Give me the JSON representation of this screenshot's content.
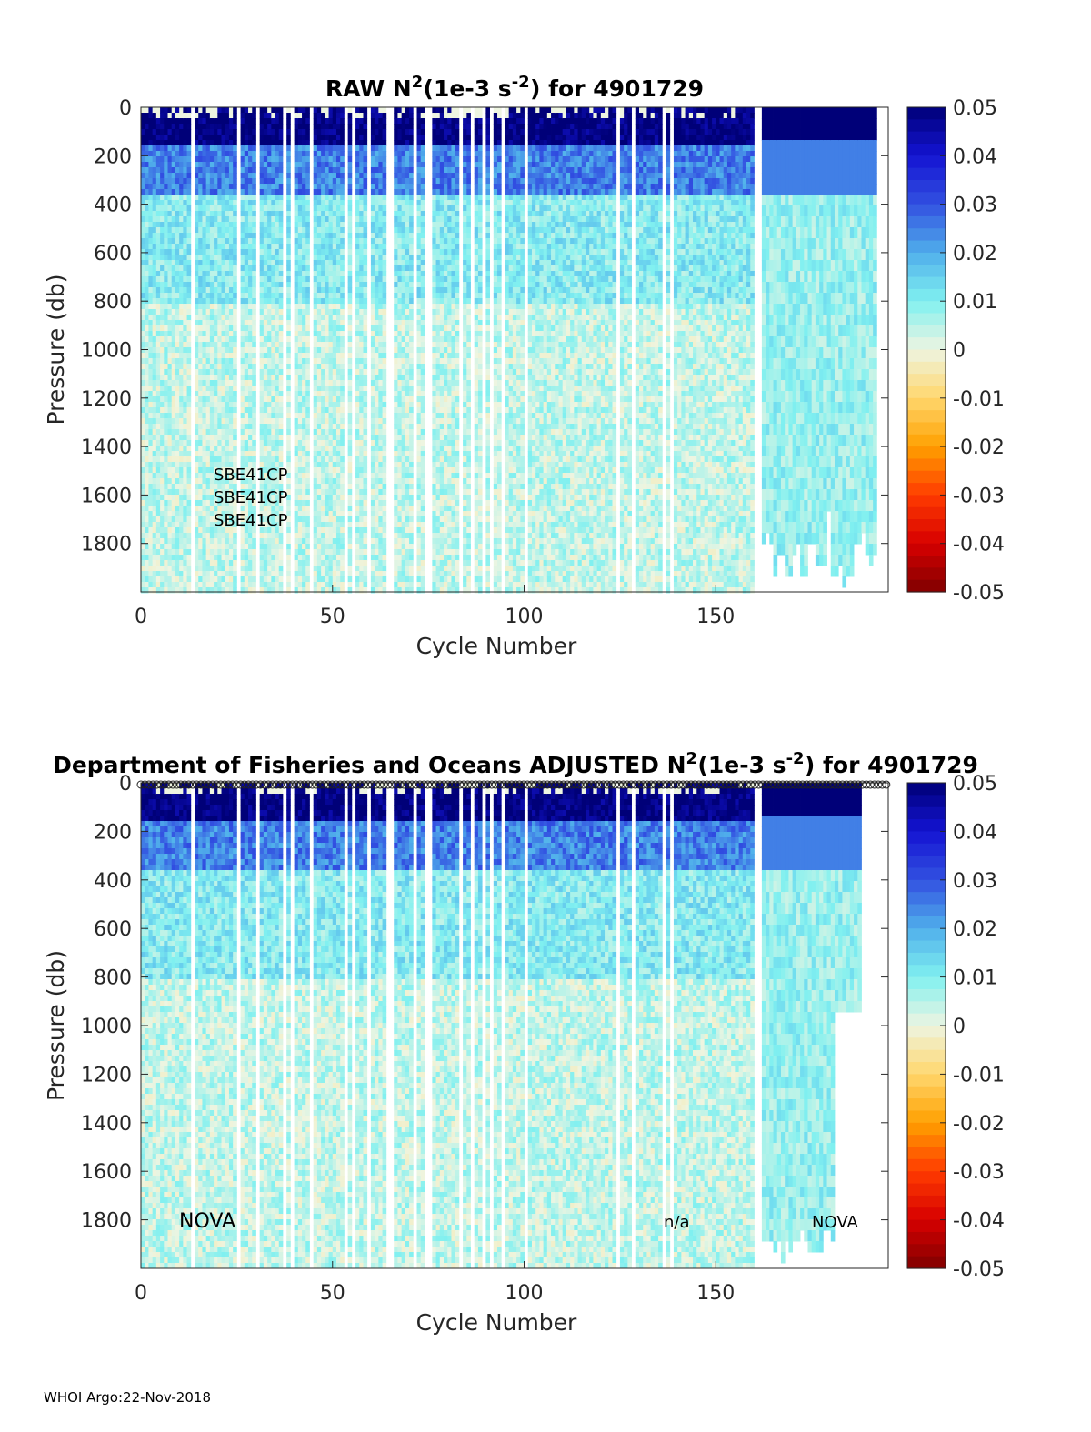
{
  "chart_data": [
    {
      "type": "heatmap",
      "panel": "top",
      "title_prefix": "RAW N",
      "title_sup1": "2",
      "title_mid": " (1e-3 s",
      "title_sup2": "-2",
      "title_suffix": ") for 4901729",
      "xlabel": "Cycle Number",
      "ylabel": "Pressure (db)",
      "xlim": [
        0,
        195
      ],
      "ylim": [
        0,
        2000
      ],
      "y_reversed": true,
      "xticks": [
        0,
        50,
        100,
        150
      ],
      "yticks": [
        0,
        200,
        400,
        600,
        800,
        1000,
        1200,
        1400,
        1600,
        1800
      ],
      "colorbar": {
        "min": -0.05,
        "max": 0.05,
        "ticks": [
          "0.05",
          "0.04",
          "0.03",
          "0.02",
          "0.01",
          "0",
          "-0.01",
          "-0.02",
          "-0.03",
          "-0.04",
          "-0.05"
        ]
      },
      "annotations": [
        "SBE41CP",
        "SBE41CP",
        "SBE41CP"
      ],
      "missing_cycles": [
        12.5,
        25,
        29.5,
        36.5,
        38.5,
        44,
        53,
        55,
        59,
        64,
        65,
        71,
        74,
        75,
        83,
        86,
        89,
        91,
        94,
        100,
        124,
        128,
        136,
        138,
        161
      ],
      "bands": [
        {
          "pressure_from": 0,
          "pressure_to": 150,
          "typical_value": 0.05
        },
        {
          "pressure_from": 150,
          "pressure_to": 350,
          "typical_value": 0.025
        },
        {
          "pressure_from": 350,
          "pressure_to": 800,
          "typical_value": 0.01
        },
        {
          "pressure_from": 800,
          "pressure_to": 2000,
          "typical_value": 0.004
        }
      ]
    },
    {
      "type": "heatmap",
      "panel": "bottom",
      "title_prefix": "Department of Fisheries and Oceans  ADJUSTED N",
      "title_sup1": "2",
      "title_mid": " (1e-3 s",
      "title_sup2": "-2",
      "title_suffix": ") for 4901729",
      "xlabel": "Cycle Number",
      "ylabel": "Pressure (db)",
      "xlim": [
        0,
        195
      ],
      "ylim": [
        0,
        2000
      ],
      "y_reversed": true,
      "xticks": [
        0,
        50,
        100,
        150
      ],
      "yticks": [
        0,
        200,
        400,
        600,
        800,
        1000,
        1200,
        1400,
        1600,
        1800
      ],
      "colorbar": {
        "min": -0.05,
        "max": 0.05,
        "ticks": [
          "0.05",
          "0.04",
          "0.03",
          "0.02",
          "0.01",
          "0",
          "-0.01",
          "-0.02",
          "-0.03",
          "-0.04",
          "-0.05"
        ]
      },
      "annotations": [
        "NOVA",
        "n/a",
        "NOVA"
      ],
      "missing_cycles": [
        12.5,
        25,
        29.5,
        36.5,
        38.5,
        44,
        53,
        55,
        59,
        64,
        65,
        71,
        74,
        75,
        83,
        86,
        89,
        91,
        94,
        100,
        124,
        128,
        136,
        138,
        161
      ],
      "bands": [
        {
          "pressure_from": 0,
          "pressure_to": 150,
          "typical_value": 0.05
        },
        {
          "pressure_from": 150,
          "pressure_to": 350,
          "typical_value": 0.025
        },
        {
          "pressure_from": 350,
          "pressure_to": 800,
          "typical_value": 0.01
        },
        {
          "pressure_from": 800,
          "pressure_to": 2000,
          "typical_value": 0.004
        }
      ]
    }
  ],
  "footer": "WHOI Argo:22-Nov-2018"
}
